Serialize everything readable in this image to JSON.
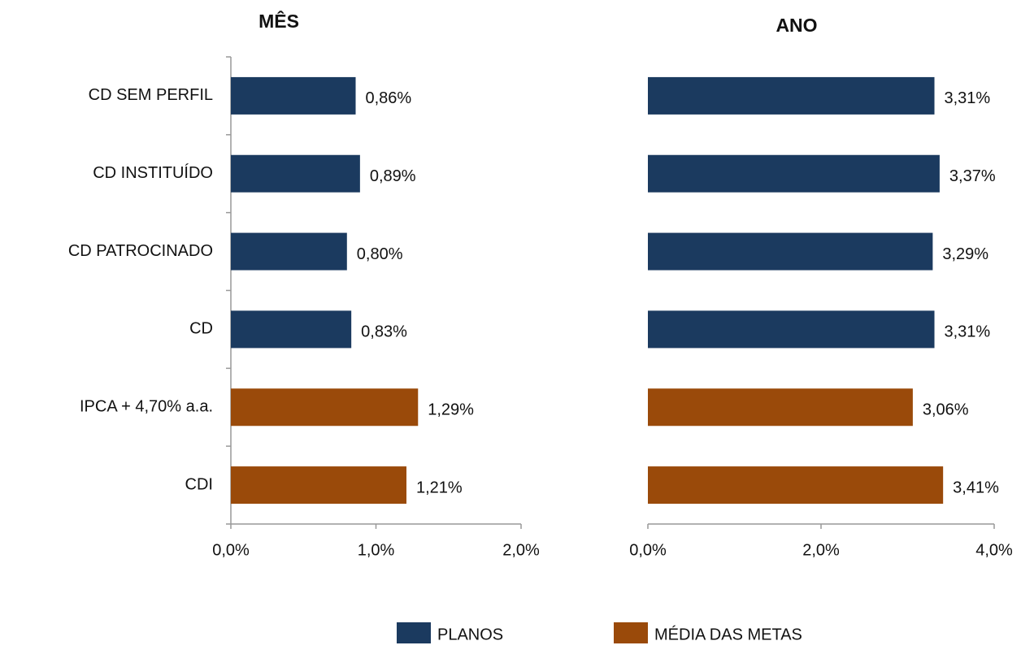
{
  "chart_data": [
    {
      "type": "bar",
      "title": "MÊS",
      "categories": [
        "CD SEM PERFIL",
        "CD INSTITUÍDO",
        "CD PATROCINADO",
        "CD",
        "IPCA + 4,70% a.a.",
        "CDI"
      ],
      "series": [
        {
          "name": "PLANOS",
          "color": "#1b3a5f",
          "values": [
            0.86,
            0.89,
            0.8,
            0.83,
            null,
            null
          ],
          "value_labels": [
            "0,86%",
            "0,89%",
            "0,80%",
            "0,83%",
            null,
            null
          ]
        },
        {
          "name": "MÉDIA DAS METAS",
          "color": "#9a4a0a",
          "values": [
            null,
            null,
            null,
            null,
            1.29,
            1.21
          ],
          "value_labels": [
            null,
            null,
            null,
            null,
            "1,29%",
            "1,21%"
          ]
        }
      ],
      "xlim": [
        0,
        2
      ],
      "xticks": [
        {
          "value": 0,
          "label": "0,0%"
        },
        {
          "value": 1,
          "label": "1,0%"
        },
        {
          "value": 2,
          "label": "2,0%"
        }
      ]
    },
    {
      "type": "bar",
      "title": "ANO",
      "series": [
        {
          "color": "#1b3a5f",
          "values": [
            3.31,
            3.37,
            3.29,
            3.31,
            null,
            null
          ],
          "value_labels": [
            "3,31%",
            "3,37%",
            "3,29%",
            "3,31%",
            null,
            null
          ]
        },
        {
          "color": "#9a4a0a",
          "values": [
            null,
            null,
            null,
            null,
            3.06,
            3.41
          ],
          "value_labels": [
            null,
            null,
            null,
            null,
            "3,06%",
            "3,41%"
          ]
        }
      ],
      "xlim": [
        0,
        4
      ],
      "xticks": [
        {
          "value": 0,
          "label": "0,0%"
        },
        {
          "value": 2,
          "label": "2,0%"
        },
        {
          "value": 4,
          "label": "4,0%"
        }
      ]
    }
  ]
}
